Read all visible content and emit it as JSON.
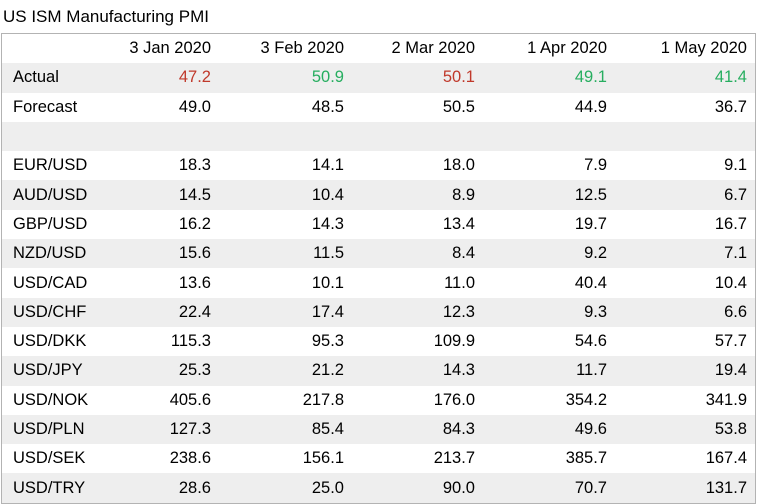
{
  "title": "US ISM Manufacturing PMI",
  "columns": [
    "",
    "3 Jan 2020",
    "3 Feb 2020",
    "2 Mar 2020",
    "1 Apr 2020",
    "1 May 2020"
  ],
  "actual": {
    "label": "Actual",
    "values": [
      "47.2",
      "50.9",
      "50.1",
      "49.1",
      "41.4"
    ],
    "colors": [
      "red",
      "green",
      "red",
      "green",
      "green"
    ]
  },
  "forecast": {
    "label": "Forecast",
    "values": [
      "49.0",
      "48.5",
      "50.5",
      "44.9",
      "36.7"
    ]
  },
  "pairs": [
    {
      "label": "EUR/USD",
      "values": [
        "18.3",
        "14.1",
        "18.0",
        "7.9",
        "9.1"
      ]
    },
    {
      "label": "AUD/USD",
      "values": [
        "14.5",
        "10.4",
        "8.9",
        "12.5",
        "6.7"
      ]
    },
    {
      "label": "GBP/USD",
      "values": [
        "16.2",
        "14.3",
        "13.4",
        "19.7",
        "16.7"
      ]
    },
    {
      "label": "NZD/USD",
      "values": [
        "15.6",
        "11.5",
        "8.4",
        "9.2",
        "7.1"
      ]
    },
    {
      "label": "USD/CAD",
      "values": [
        "13.6",
        "10.1",
        "11.0",
        "40.4",
        "10.4"
      ]
    },
    {
      "label": "USD/CHF",
      "values": [
        "22.4",
        "17.4",
        "12.3",
        "9.3",
        "6.6"
      ]
    },
    {
      "label": "USD/DKK",
      "values": [
        "115.3",
        "95.3",
        "109.9",
        "54.6",
        "57.7"
      ]
    },
    {
      "label": "USD/JPY",
      "values": [
        "25.3",
        "21.2",
        "14.3",
        "11.7",
        "19.4"
      ]
    },
    {
      "label": "USD/NOK",
      "values": [
        "405.6",
        "217.8",
        "176.0",
        "354.2",
        "341.9"
      ]
    },
    {
      "label": "USD/PLN",
      "values": [
        "127.3",
        "85.4",
        "84.3",
        "49.6",
        "53.8"
      ]
    },
    {
      "label": "USD/SEK",
      "values": [
        "238.6",
        "156.1",
        "213.7",
        "385.7",
        "167.4"
      ]
    },
    {
      "label": "USD/TRY",
      "values": [
        "28.6",
        "25.0",
        "90.0",
        "70.7",
        "131.7"
      ]
    }
  ]
}
